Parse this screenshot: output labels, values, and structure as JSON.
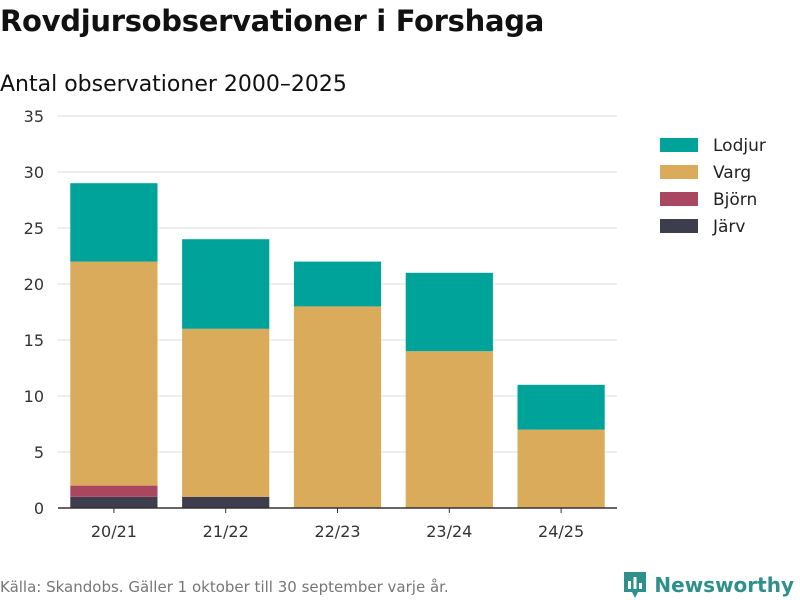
{
  "title": "Rovdjursobservationer i Forshaga",
  "subtitle": "Antal observationer 2000–2025",
  "footer": "Källa: Skandobs. Gäller 1 oktober till 30 september varje år.",
  "brand": {
    "name": "Newsworthy",
    "icon": "newsworthy-logo-icon",
    "color": "#2f8f8a"
  },
  "chart_data": {
    "type": "bar",
    "stacked": true,
    "categories": [
      "20/21",
      "21/22",
      "22/23",
      "23/24",
      "24/25"
    ],
    "series": [
      {
        "name": "Järv",
        "color": "#3d3d4d",
        "values": [
          1,
          1,
          0,
          0,
          0
        ]
      },
      {
        "name": "Björn",
        "color": "#a8475f",
        "values": [
          1,
          0,
          0,
          0,
          0
        ]
      },
      {
        "name": "Varg",
        "color": "#d9ab5a",
        "values": [
          20,
          15,
          18,
          14,
          7
        ]
      },
      {
        "name": "Lodjur",
        "color": "#00a39a",
        "values": [
          7,
          8,
          4,
          7,
          4
        ]
      }
    ],
    "legend_order": [
      "Lodjur",
      "Varg",
      "Björn",
      "Järv"
    ],
    "yticks": [
      0,
      5,
      10,
      15,
      20,
      25,
      30,
      35
    ],
    "ylim": [
      0,
      35
    ],
    "grid": true,
    "legend_position": "top-right"
  }
}
